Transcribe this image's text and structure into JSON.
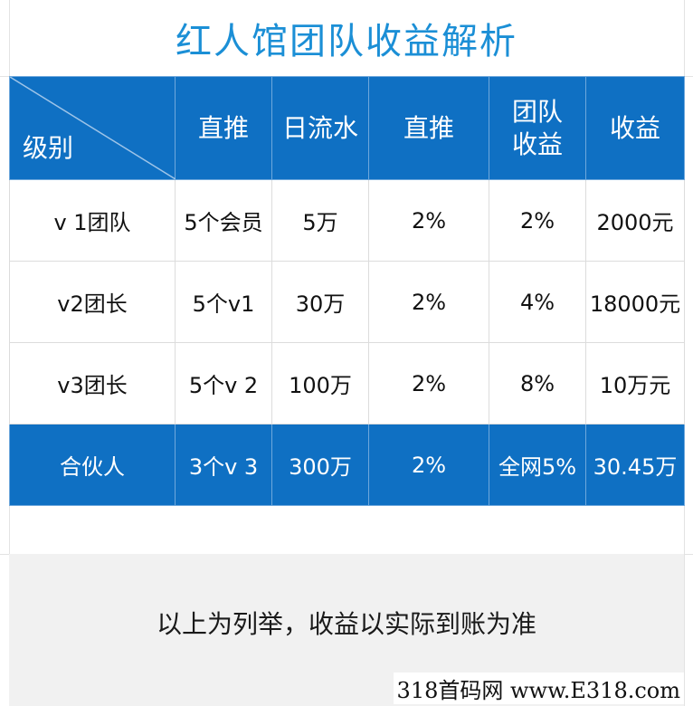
{
  "title": "红人馆团队收益解析",
  "table": {
    "corner_label": "级别",
    "headers": [
      "直推",
      "日流水",
      "直推",
      "团队收益",
      "收益"
    ],
    "rows": [
      [
        "v 1团队",
        "5个会员",
        "5万",
        "2%",
        "2%",
        "2000元"
      ],
      [
        "v2团长",
        "5个v1",
        "30万",
        "2%",
        "4%",
        "18000元"
      ],
      [
        "v3团长",
        "5个v 2",
        "100万",
        "2%",
        "8%",
        "10万元"
      ],
      [
        "合伙人",
        "3个v 3",
        "300万",
        "2%",
        "全网5%",
        "30.45万"
      ]
    ]
  },
  "note": "以上为列举，收益以实际到账为准",
  "watermark": "318首码网 www.E318.com",
  "colors": {
    "header_bg": "#0f70c3",
    "title": "#1b8fd6"
  }
}
